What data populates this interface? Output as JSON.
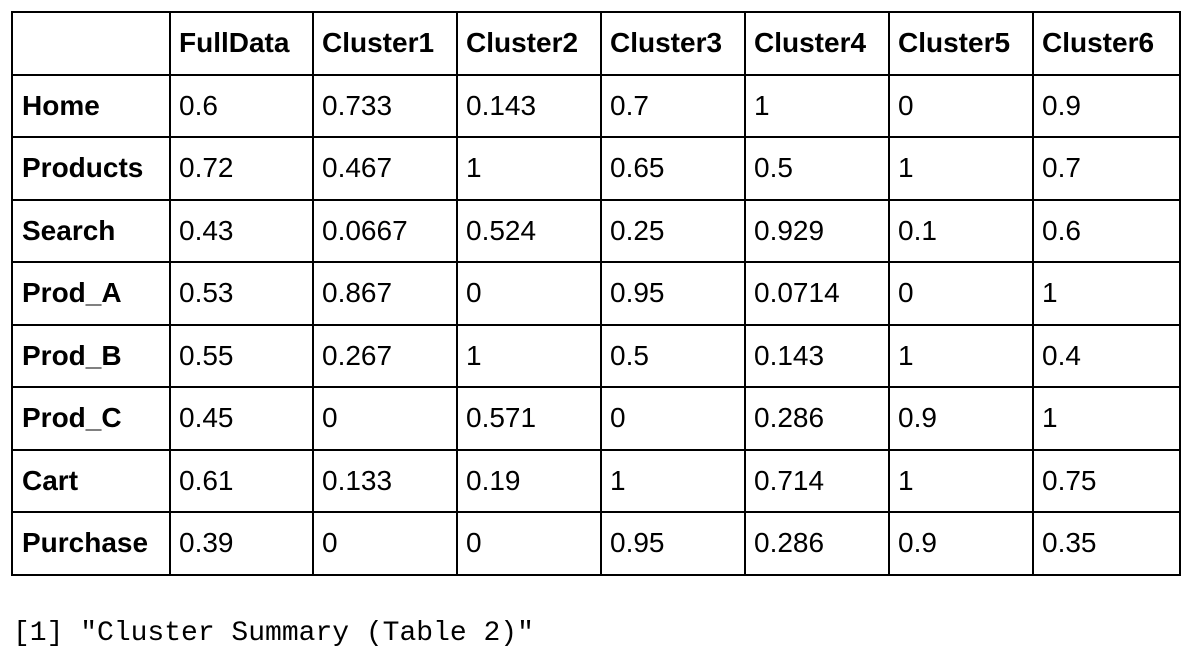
{
  "table": {
    "corner": "",
    "columns": [
      "FullData",
      "Cluster1",
      "Cluster2",
      "Cluster3",
      "Cluster4",
      "Cluster5",
      "Cluster6"
    ],
    "rows": [
      {
        "label": "Home",
        "values": [
          "0.6",
          "0.733",
          "0.143",
          "0.7",
          "1",
          "0",
          "0.9"
        ]
      },
      {
        "label": "Products",
        "values": [
          "0.72",
          "0.467",
          "1",
          "0.65",
          "0.5",
          "1",
          "0.7"
        ]
      },
      {
        "label": "Search",
        "values": [
          "0.43",
          "0.0667",
          "0.524",
          "0.25",
          "0.929",
          "0.1",
          "0.6"
        ]
      },
      {
        "label": "Prod_A",
        "values": [
          "0.53",
          "0.867",
          "0",
          "0.95",
          "0.0714",
          "0",
          "1"
        ]
      },
      {
        "label": "Prod_B",
        "values": [
          "0.55",
          "0.267",
          "1",
          "0.5",
          "0.143",
          "1",
          "0.4"
        ]
      },
      {
        "label": "Prod_C",
        "values": [
          "0.45",
          "0",
          "0.571",
          "0",
          "0.286",
          "0.9",
          "1"
        ]
      },
      {
        "label": "Cart",
        "values": [
          "0.61",
          "0.133",
          "0.19",
          "1",
          "0.714",
          "1",
          "0.75"
        ]
      },
      {
        "label": "Purchase",
        "values": [
          "0.39",
          "0",
          "0",
          "0.95",
          "0.286",
          "0.9",
          "0.35"
        ]
      }
    ]
  },
  "console": {
    "output": "[1] \"Cluster Summary (Table 2)\""
  }
}
